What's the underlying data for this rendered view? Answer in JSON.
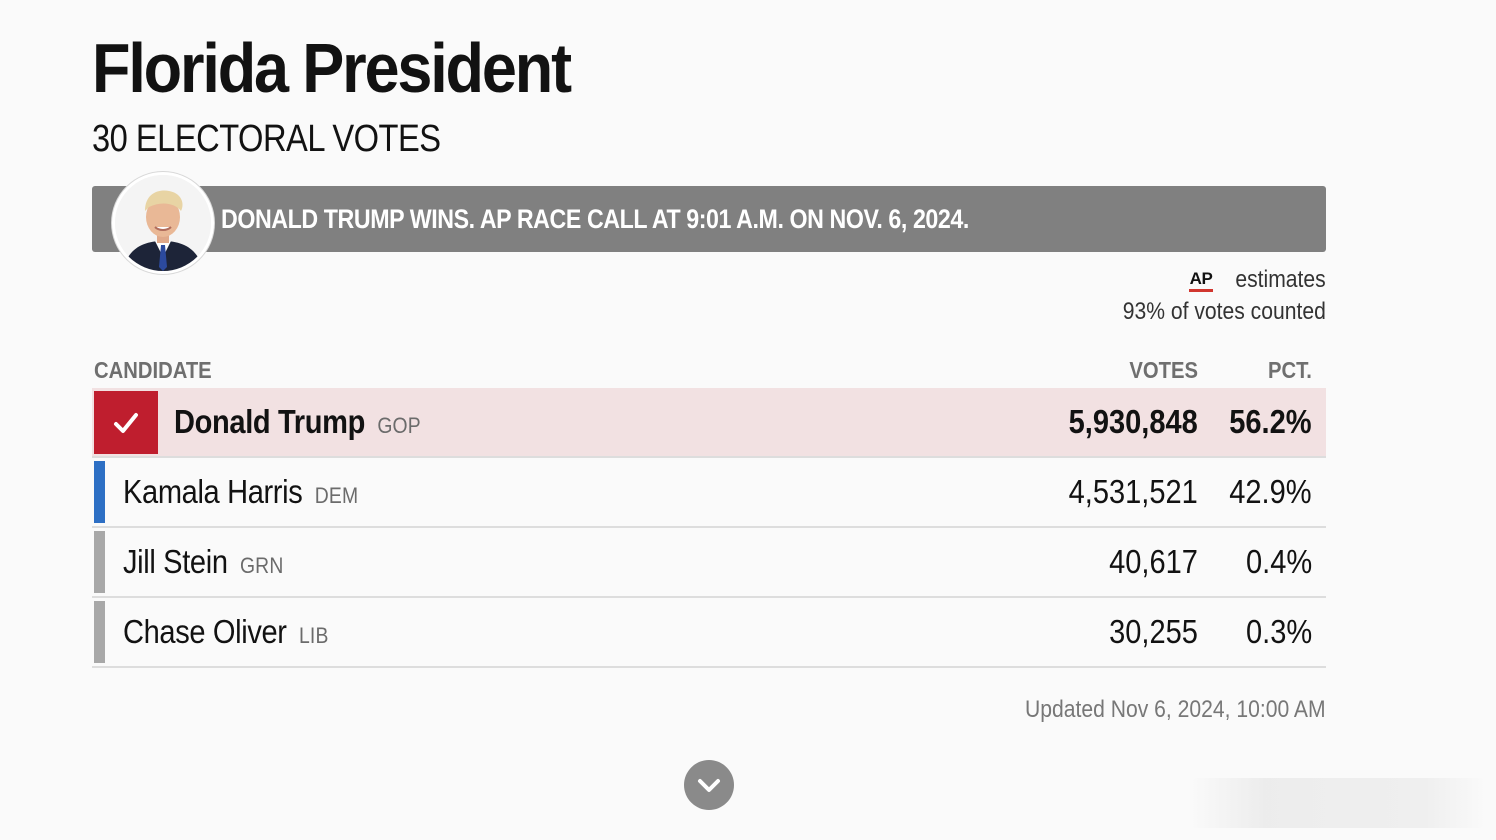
{
  "header": {
    "title": "Florida President",
    "subtitle": "30 ELECTORAL VOTES"
  },
  "banner": {
    "text": "DONALD TRUMP WINS. AP RACE CALL AT 9:01 A.M. ON NOV. 6, 2024.",
    "background": "#808080"
  },
  "estimates": {
    "source_logo": "AP",
    "label": "estimates",
    "counted": "93% of votes counted"
  },
  "table": {
    "columns": {
      "candidate": "CANDIDATE",
      "votes": "VOTES",
      "pct": "PCT."
    },
    "rows": [
      {
        "name": "Donald Trump",
        "party": "GOP",
        "votes": "5,930,848",
        "pct": "56.2%",
        "winner": true,
        "color": "#bf1e2e",
        "icon": "checkmark-icon"
      },
      {
        "name": "Kamala Harris",
        "party": "DEM",
        "votes": "4,531,521",
        "pct": "42.9%",
        "winner": false,
        "color": "#2d6fc4"
      },
      {
        "name": "Jill Stein",
        "party": "GRN",
        "votes": "40,617",
        "pct": "0.4%",
        "winner": false,
        "color": "#a8a8a8"
      },
      {
        "name": "Chase Oliver",
        "party": "LIB",
        "votes": "30,255",
        "pct": "0.3%",
        "winner": false,
        "color": "#a8a8a8"
      }
    ]
  },
  "footer": {
    "updated": "Updated Nov 6, 2024, 10:00 AM",
    "expand_icon": "chevron-down-icon"
  },
  "colors": {
    "winner_row_bg": "#f2e1e2",
    "gop": "#bf1e2e",
    "dem": "#2d6fc4",
    "other": "#a8a8a8"
  }
}
